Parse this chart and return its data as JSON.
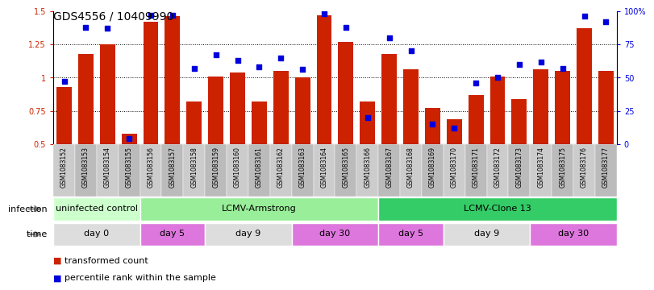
{
  "title": "GDS4556 / 10409990",
  "samples": [
    "GSM1083152",
    "GSM1083153",
    "GSM1083154",
    "GSM1083155",
    "GSM1083156",
    "GSM1083157",
    "GSM1083158",
    "GSM1083159",
    "GSM1083160",
    "GSM1083161",
    "GSM1083162",
    "GSM1083163",
    "GSM1083164",
    "GSM1083165",
    "GSM1083166",
    "GSM1083167",
    "GSM1083168",
    "GSM1083169",
    "GSM1083170",
    "GSM1083171",
    "GSM1083172",
    "GSM1083173",
    "GSM1083174",
    "GSM1083175",
    "GSM1083176",
    "GSM1083177"
  ],
  "bar_values": [
    0.93,
    1.18,
    1.25,
    0.58,
    1.42,
    1.46,
    0.82,
    1.01,
    1.04,
    0.82,
    1.05,
    1.0,
    1.47,
    1.27,
    0.82,
    1.18,
    1.06,
    0.77,
    0.69,
    0.87,
    1.01,
    0.84,
    1.06,
    1.05,
    1.37,
    1.05
  ],
  "percentile_values": [
    47,
    88,
    87,
    4,
    97,
    97,
    57,
    67,
    63,
    58,
    65,
    56,
    98,
    88,
    20,
    80,
    70,
    15,
    12,
    46,
    50,
    60,
    62,
    57,
    96,
    92
  ],
  "bar_color": "#cc2200",
  "percentile_color": "#0000dd",
  "ylim_left": [
    0.5,
    1.5
  ],
  "ylim_right": [
    0,
    100
  ],
  "yticks_left": [
    0.5,
    0.75,
    1.0,
    1.25,
    1.5
  ],
  "ytick_labels_left": [
    "0.5",
    "0.75",
    "1",
    "1.25",
    "1.5"
  ],
  "yticks_right": [
    0,
    25,
    50,
    75,
    100
  ],
  "ytick_labels_right": [
    "0",
    "25",
    "50",
    "75",
    "100%"
  ],
  "infection_groups": [
    {
      "label": "uninfected control",
      "start": 0,
      "end": 4,
      "color": "#ccffcc"
    },
    {
      "label": "LCMV-Armstrong",
      "start": 4,
      "end": 15,
      "color": "#99ee99"
    },
    {
      "label": "LCMV-Clone 13",
      "start": 15,
      "end": 26,
      "color": "#33cc66"
    }
  ],
  "time_groups": [
    {
      "label": "day 0",
      "start": 0,
      "end": 4,
      "color": "#dddddd"
    },
    {
      "label": "day 5",
      "start": 4,
      "end": 7,
      "color": "#dd77dd"
    },
    {
      "label": "day 9",
      "start": 7,
      "end": 11,
      "color": "#dddddd"
    },
    {
      "label": "day 30",
      "start": 11,
      "end": 15,
      "color": "#dd77dd"
    },
    {
      "label": "day 5",
      "start": 15,
      "end": 18,
      "color": "#dd77dd"
    },
    {
      "label": "day 9",
      "start": 18,
      "end": 22,
      "color": "#dddddd"
    },
    {
      "label": "day 30",
      "start": 22,
      "end": 26,
      "color": "#dd77dd"
    }
  ],
  "legend_bar_label": "transformed count",
  "legend_pct_label": "percentile rank within the sample",
  "infection_label": "infection",
  "time_label": "time",
  "xtick_bg_color": "#cccccc",
  "title_fontsize": 10,
  "tick_fontsize": 7,
  "label_fontsize": 8,
  "xtick_fontsize": 5.5
}
